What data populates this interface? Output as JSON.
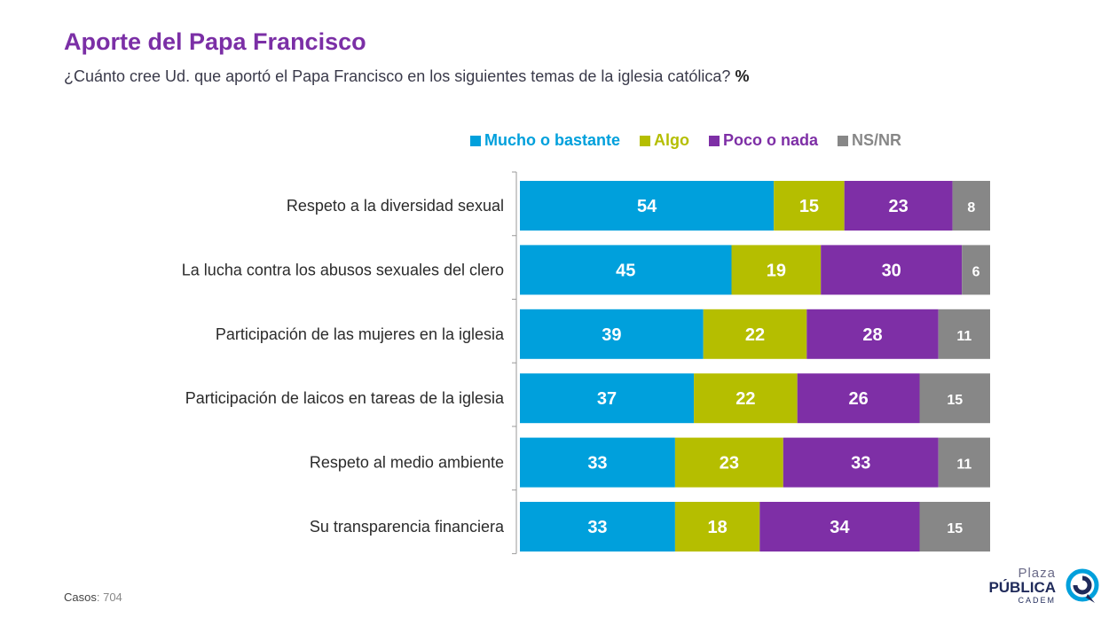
{
  "header": {
    "title": "Aporte del Papa Francisco",
    "subtitle": "¿Cuánto cree Ud. que aportó el Papa Francisco en los siguientes temas de la iglesia católica?",
    "subtitle_unit": "%"
  },
  "footer": {
    "cases_label": "Casos",
    "cases_value": ": 704"
  },
  "brand": {
    "line1": "Plaza",
    "line2": "PÚBLICA",
    "line3": "CADEM",
    "logo_icon": "speech-bubble-logo-icon"
  },
  "chart_data": {
    "type": "bar",
    "orientation": "horizontal",
    "stacked": true,
    "title": "Aporte del Papa Francisco",
    "legend_position": "top",
    "grid": false,
    "xlim": [
      0,
      100
    ],
    "categories": [
      "Respeto a la diversidad sexual",
      "La lucha contra los abusos sexuales del clero",
      "Participación de las mujeres en la iglesia",
      "Participación de laicos en tareas de la iglesia",
      "Respeto al medio ambiente",
      "Su transparencia financiera"
    ],
    "series": [
      {
        "name": "Mucho o bastante",
        "color": "#00a0dc",
        "values": [
          54,
          45,
          39,
          37,
          33,
          33
        ]
      },
      {
        "name": "Algo",
        "color": "#b5be00",
        "values": [
          15,
          19,
          22,
          22,
          23,
          18
        ]
      },
      {
        "name": "Poco o nada",
        "color": "#7e2fa6",
        "values": [
          23,
          30,
          28,
          26,
          33,
          34
        ]
      },
      {
        "name": "NS/NR",
        "color": "#878787",
        "values": [
          8,
          6,
          11,
          15,
          11,
          15
        ]
      }
    ]
  }
}
